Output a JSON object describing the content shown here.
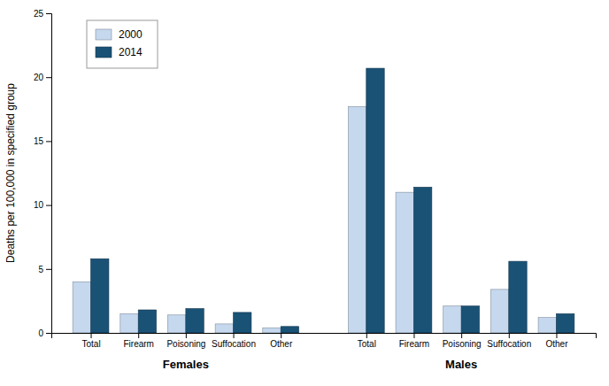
{
  "chart_data": {
    "type": "bar",
    "categories": [
      "Total",
      "Firearm",
      "Poisoning",
      "Suffocation",
      "Other",
      "Total",
      "Firearm",
      "Poisoning",
      "Suffocation",
      "Other"
    ],
    "sections": [
      "Females",
      "Females",
      "Females",
      "Females",
      "Females",
      "Males",
      "Males",
      "Males",
      "Males",
      "Males"
    ],
    "series": [
      {
        "name": "2000",
        "color": "#c5d8ee",
        "values": [
          4.0,
          1.5,
          1.4,
          0.7,
          0.4,
          17.7,
          11.0,
          2.1,
          3.4,
          1.2
        ]
      },
      {
        "name": "2014",
        "color": "#1a5276",
        "values": [
          5.8,
          1.8,
          1.9,
          1.6,
          0.5,
          20.7,
          11.4,
          2.1,
          5.6,
          1.5
        ]
      }
    ],
    "ylabel": "Deaths per 100,000 in specified group",
    "ylim": [
      0,
      25
    ],
    "yticks": [
      0,
      5,
      10,
      15,
      20,
      25
    ],
    "legend": "upper left",
    "grid": false
  }
}
